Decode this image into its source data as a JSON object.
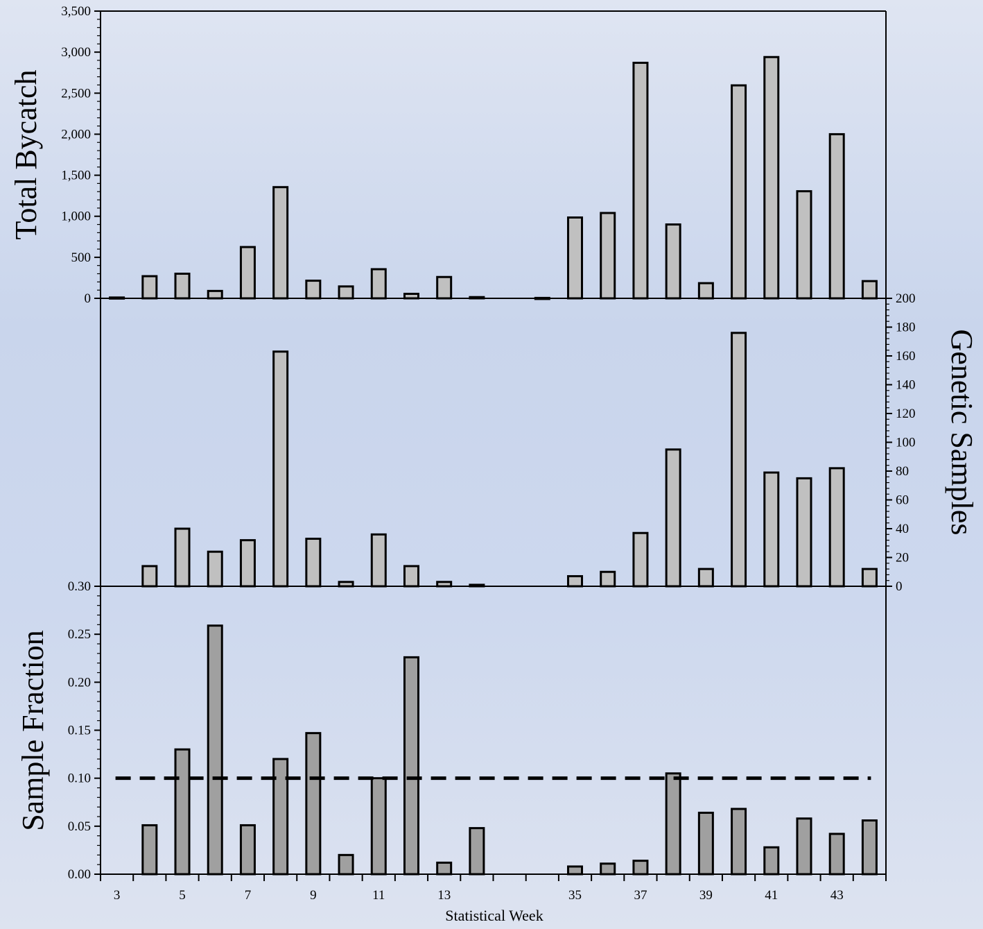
{
  "chart_data": [
    {
      "type": "bar",
      "panel": "top",
      "ylabel": "Total Bycatch",
      "ylim": [
        0,
        3500
      ],
      "yticks": [
        0,
        500,
        1000,
        1500,
        2000,
        2500,
        3000,
        3500
      ],
      "ytick_labels": [
        "0",
        "500",
        "1,000",
        "1,500",
        "2,000",
        "2,500",
        "3,000",
        "3,500"
      ],
      "y_axis_side": "left",
      "bar_color": "#c0c0c0",
      "categories": [
        "3",
        "4",
        "5",
        "6",
        "7",
        "8",
        "9",
        "10",
        "11",
        "12",
        "13",
        "14",
        "34",
        "35",
        "36",
        "37",
        "38",
        "39",
        "40",
        "41",
        "42",
        "43",
        "44"
      ],
      "values": [
        10,
        270,
        300,
        90,
        625,
        1355,
        215,
        145,
        355,
        55,
        260,
        15,
        5,
        985,
        1040,
        2870,
        900,
        185,
        2595,
        2940,
        1305,
        2000,
        210
      ]
    },
    {
      "type": "bar",
      "panel": "middle",
      "ylabel": "Genetic Samples",
      "ylim": [
        0,
        200
      ],
      "yticks": [
        0,
        20,
        40,
        60,
        80,
        100,
        120,
        140,
        160,
        180,
        200
      ],
      "ytick_labels": [
        "0",
        "20",
        "40",
        "60",
        "80",
        "100",
        "120",
        "140",
        "160",
        "180",
        "200"
      ],
      "y_axis_side": "right",
      "bar_color": "#c0c0c0",
      "categories": [
        "3",
        "4",
        "5",
        "6",
        "7",
        "8",
        "9",
        "10",
        "11",
        "12",
        "13",
        "14",
        "34",
        "35",
        "36",
        "37",
        "38",
        "39",
        "40",
        "41",
        "42",
        "43",
        "44"
      ],
      "values": [
        0,
        14,
        40,
        24,
        32,
        163,
        33,
        3,
        36,
        14,
        3,
        1,
        0,
        7,
        10,
        37,
        95,
        12,
        176,
        79,
        75,
        82,
        12
      ]
    },
    {
      "type": "bar",
      "panel": "bottom",
      "ylabel": "Sample Fraction",
      "ylim": [
        0,
        0.3
      ],
      "yticks": [
        0,
        0.05,
        0.1,
        0.15,
        0.2,
        0.25,
        0.3
      ],
      "ytick_labels": [
        "0.00",
        "0.05",
        "0.10",
        "0.15",
        "0.20",
        "0.25",
        "0.30"
      ],
      "y_axis_side": "left",
      "bar_color": "#a0a0a0",
      "categories": [
        "3",
        "4",
        "5",
        "6",
        "7",
        "8",
        "9",
        "10",
        "11",
        "12",
        "13",
        "14",
        "34",
        "35",
        "36",
        "37",
        "38",
        "39",
        "40",
        "41",
        "42",
        "43",
        "44"
      ],
      "values": [
        0,
        0.051,
        0.13,
        0.259,
        0.051,
        0.12,
        0.147,
        0.02,
        0.1,
        0.226,
        0.012,
        0.048,
        0,
        0.008,
        0.011,
        0.014,
        0.105,
        0.064,
        0.068,
        0.028,
        0.058,
        0.042,
        0.056
      ],
      "reference_line": {
        "y": 0.1,
        "style": "dashed"
      },
      "xlabel": "Statistical Week",
      "xtick_labels_shown": [
        "3",
        "5",
        "7",
        "9",
        "11",
        "13",
        "35",
        "37",
        "39",
        "41",
        "43"
      ]
    }
  ]
}
